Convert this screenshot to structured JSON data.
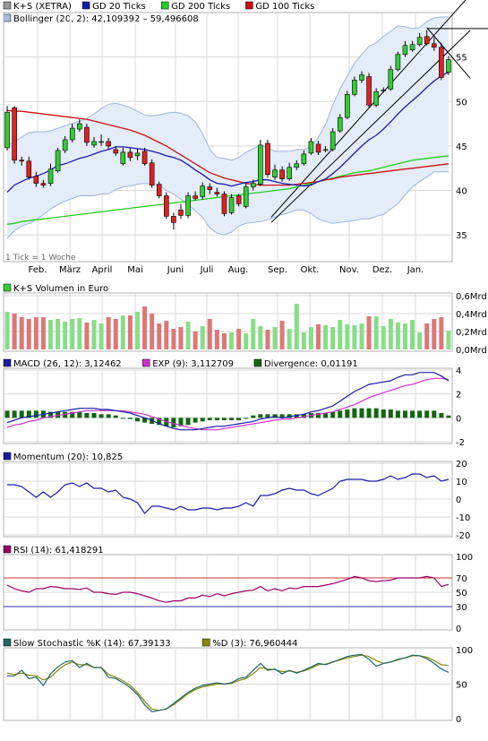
{
  "colors": {
    "up": "#33cc33",
    "down": "#dd2222",
    "ma20": "#1a1aa8",
    "ma200": "#22cc22",
    "ma100": "#cc1111",
    "bollinger_fill": "#e4ecf9",
    "bollinger_line": "#9bb4dd",
    "trend": "#000000",
    "vol_up": "#88dd88",
    "vol_down": "#dd7777",
    "macd": "#1a1aa8",
    "signal": "#cc33cc",
    "divergence": "#116611",
    "momentum": "#1a1aa8",
    "rsi": "#990066",
    "rsi_ob": "#cc3333",
    "rsi_os": "#3333aa",
    "stoch_k": "#226666",
    "stoch_d": "#888811",
    "grid": "#d8d8d8"
  },
  "months": [
    "Feb.",
    "März",
    "April",
    "Mai",
    "Juni",
    "Juli",
    "Aug.",
    "Sep.",
    "Okt.",
    "Nov.",
    "Dez.",
    "Jan."
  ],
  "price_panel": {
    "legend": [
      {
        "label": "K+S (XETRA)",
        "swatch": "#999999"
      },
      {
        "label": "GD 20 Ticks",
        "swatch": "#1a1aa8"
      },
      {
        "label": "GD 200 Ticks",
        "swatch": "#22cc22"
      },
      {
        "label": "GD 100 Ticks",
        "swatch": "#cc1111"
      }
    ],
    "bollinger_label": "Bollinger (20, 2): 42,109392 – 59,496608",
    "tick_note": "1 Tick = 1 Woche",
    "y_ticks": [
      "55",
      "50",
      "45",
      "40",
      "35"
    ]
  },
  "volume_panel": {
    "label": "K+S Volumen in Euro",
    "y_ticks": [
      "0,6Mrd",
      "0,4Mrd",
      "0,2Mrd",
      "0,0Mrd"
    ]
  },
  "macd_panel": {
    "legend": [
      {
        "label": "MACD (26, 12): 3,12462",
        "swatch": "#1a1aa8"
      },
      {
        "label": "EXP (9): 3,112709",
        "swatch": "#cc33cc"
      },
      {
        "label": "Divergence: 0,01191",
        "swatch": "#116611"
      }
    ],
    "y_ticks": [
      "4",
      "2",
      "0",
      "-2"
    ]
  },
  "momentum_panel": {
    "label": "Momentum (20): 10,825",
    "y_ticks": [
      "20",
      "10",
      "0",
      "-10",
      "-20"
    ]
  },
  "rsi_panel": {
    "label": "RSI (14): 61,418291",
    "y_ticks": [
      "100",
      "70",
      "50",
      "30",
      "0"
    ]
  },
  "stoch_panel": {
    "legend": [
      {
        "label": "Slow Stochastic %K (14): 67,39133",
        "swatch": "#226666"
      },
      {
        "label": "%D (3): 76,960444",
        "swatch": "#888811"
      }
    ],
    "y_ticks": [
      "100",
      "50",
      "0"
    ]
  },
  "chart_data": {
    "type": "candlestick",
    "series_candles": {
      "open": [
        44.8,
        49.3,
        43.4,
        43.3,
        41.6,
        40.8,
        40.8,
        42.2,
        44.5,
        45.7,
        46.9,
        47.1,
        45.1,
        45.5,
        45.5,
        44.6,
        43.0,
        44.3,
        43.9,
        44.4,
        43.1,
        40.7,
        39.4,
        37.1,
        37.8,
        37.2,
        39.4,
        39.3,
        40.4,
        39.8,
        39.6,
        37.5,
        39.4,
        38.2,
        40.4,
        40.7,
        45.3,
        41.5,
        42.3,
        41.3,
        42.6,
        43.0,
        44.2,
        45.2,
        44.6,
        44.6,
        46.7,
        48.2,
        50.8,
        52.4,
        52.8,
        49.6,
        51.2,
        51.4,
        53.6,
        55.3,
        55.8,
        56.4,
        57.3,
        56.5,
        56.1,
        53.3
      ],
      "close": [
        48.8,
        43.4,
        43.3,
        41.5,
        40.8,
        40.6,
        42.4,
        44.5,
        45.7,
        47.0,
        47.5,
        45.4,
        45.5,
        45.5,
        45.0,
        44.2,
        44.3,
        43.7,
        44.2,
        43.0,
        40.6,
        39.4,
        37.1,
        36.4,
        37.2,
        39.4,
        39.1,
        40.5,
        40.1,
        39.6,
        37.4,
        39.2,
        38.5,
        40.4,
        40.8,
        45.1,
        41.8,
        42.3,
        41.3,
        42.6,
        43.0,
        44.1,
        45.5,
        44.3,
        44.6,
        46.6,
        48.2,
        50.8,
        52.4,
        53.0,
        49.6,
        51.1,
        51.3,
        53.6,
        55.3,
        56.3,
        56.4,
        57.2,
        56.5,
        56.1,
        52.7,
        54.7
      ],
      "high": [
        49.5,
        49.5,
        43.8,
        43.8,
        42.1,
        41.2,
        43.0,
        44.8,
        46.1,
        47.5,
        48.0,
        47.5,
        46.0,
        46.3,
        45.9,
        45.0,
        44.8,
        44.8,
        44.7,
        44.8,
        43.5,
        41.0,
        39.8,
        37.5,
        38.5,
        39.8,
        39.9,
        40.9,
        40.8,
        40.3,
        39.9,
        39.6,
        39.6,
        40.8,
        41.2,
        45.7,
        45.7,
        42.9,
        42.7,
        43.1,
        43.4,
        44.5,
        45.9,
        45.6,
        45.0,
        47.0,
        48.6,
        51.2,
        52.8,
        53.4,
        53.2,
        51.5,
        51.6,
        54.0,
        55.6,
        56.8,
        56.8,
        57.7,
        58.0,
        57.2,
        56.6,
        55.1
      ],
      "low": [
        44.5,
        43.0,
        42.8,
        41.2,
        40.4,
        40.3,
        40.5,
        42.0,
        44.2,
        45.4,
        46.6,
        45.0,
        44.8,
        45.0,
        44.6,
        43.9,
        42.8,
        43.3,
        43.4,
        42.8,
        40.3,
        39.1,
        36.8,
        35.6,
        36.8,
        36.9,
        38.9,
        39.0,
        39.6,
        39.3,
        37.1,
        37.3,
        38.2,
        38.0,
        40.0,
        40.5,
        41.5,
        41.2,
        41.0,
        41.1,
        42.3,
        42.8,
        44.0,
        44.0,
        44.3,
        44.4,
        46.5,
        48.0,
        50.6,
        52.1,
        49.3,
        49.4,
        51.0,
        51.2,
        53.4,
        55.0,
        55.6,
        56.2,
        56.3,
        55.7,
        52.4,
        53.0
      ]
    },
    "ma20": [
      39.8,
      40.6,
      41.0,
      41.4,
      41.6,
      41.9,
      42.3,
      42.8,
      43.0,
      43.3,
      43.6,
      43.8,
      44.1,
      44.4,
      44.6,
      44.9,
      44.9,
      44.8,
      44.7,
      44.6,
      44.4,
      44.2,
      43.9,
      43.7,
      43.4,
      42.9,
      42.3,
      41.8,
      41.2,
      40.8,
      40.7,
      40.5,
      40.7,
      40.9,
      41.0,
      41.2,
      41.2,
      41.0,
      40.8,
      40.7,
      40.6,
      40.5,
      40.6,
      41.0,
      41.3,
      41.9,
      42.6,
      43.4,
      44.2,
      45.0,
      45.7,
      46.2,
      46.9,
      47.7,
      48.6,
      49.4,
      50.1,
      50.8,
      51.6,
      52.3,
      52.9,
      53.3
    ],
    "ma100": [
      49.0,
      48.9,
      48.9,
      48.8,
      48.7,
      48.6,
      48.5,
      48.4,
      48.3,
      48.2,
      48.1,
      48.0,
      47.8,
      47.6,
      47.4,
      47.2,
      47.0,
      46.8,
      46.5,
      46.2,
      45.8,
      45.4,
      45.0,
      44.5,
      44.0,
      43.5,
      43.0,
      42.5,
      42.0,
      41.7,
      41.4,
      41.2,
      41.0,
      40.8,
      40.7,
      40.6,
      40.6,
      40.6,
      40.6,
      40.6,
      40.7,
      40.8,
      40.9,
      41.0,
      41.2,
      41.3,
      41.5,
      41.6,
      41.7,
      41.8,
      41.9,
      42.0,
      42.1,
      42.2,
      42.3,
      42.4,
      42.5,
      42.6,
      42.7,
      42.8,
      42.9,
      43.0
    ],
    "ma200": [
      36.2,
      36.3,
      36.5,
      36.6,
      36.7,
      36.8,
      36.9,
      37.0,
      37.1,
      37.2,
      37.3,
      37.4,
      37.5,
      37.6,
      37.7,
      37.8,
      37.9,
      38.0,
      38.1,
      38.2,
      38.3,
      38.4,
      38.5,
      38.6,
      38.7,
      38.8,
      38.9,
      39.0,
      39.1,
      39.2,
      39.3,
      39.4,
      39.5,
      39.6,
      39.7,
      39.8,
      39.9,
      40.0,
      40.1,
      40.2,
      40.4,
      40.6,
      40.8,
      41.0,
      41.2,
      41.4,
      41.6,
      41.8,
      42.0,
      42.1,
      42.2,
      42.4,
      42.6,
      42.8,
      43.0,
      43.2,
      43.4,
      43.5,
      43.6,
      43.7,
      43.8,
      43.9
    ],
    "boll_upper": [
      45.0,
      45.5,
      46.0,
      46.5,
      46.6,
      46.6,
      46.7,
      47.0,
      47.3,
      47.5,
      47.8,
      48.1,
      48.6,
      49.2,
      49.7,
      49.8,
      49.6,
      49.3,
      48.9,
      48.5,
      48.4,
      48.5,
      48.7,
      48.8,
      48.7,
      48.4,
      47.7,
      46.4,
      44.6,
      43.7,
      43.6,
      43.4,
      43.7,
      44.3,
      44.7,
      45.1,
      44.8,
      44.4,
      44.4,
      44.4,
      44.6,
      44.6,
      44.9,
      46.0,
      47.4,
      49.6,
      51.4,
      52.9,
      54.3,
      55.3,
      56.2,
      56.6,
      57.3,
      57.9,
      58.5,
      58.4,
      58.2,
      58.3,
      59.0,
      59.4,
      59.5,
      59.5
    ],
    "boll_lower": [
      34.6,
      35.5,
      36.0,
      36.3,
      36.7,
      37.3,
      37.9,
      38.4,
      38.8,
      39.1,
      39.4,
      39.4,
      39.4,
      39.6,
      39.6,
      40.1,
      40.4,
      40.5,
      40.7,
      40.8,
      40.7,
      40.6,
      40.0,
      39.6,
      39.0,
      38.4,
      37.7,
      37.0,
      35.8,
      35.2,
      35.0,
      35.3,
      36.0,
      36.3,
      36.4,
      36.5,
      36.7,
      37.0,
      37.3,
      37.5,
      37.8,
      37.8,
      37.4,
      36.8,
      36.5,
      36.3,
      36.4,
      36.5,
      36.6,
      36.8,
      36.8,
      37.1,
      37.3,
      37.9,
      38.5,
      39.5,
      40.4,
      41.0,
      41.5,
      42.1,
      42.1,
      42.1
    ],
    "volume_bn": [
      0.42,
      0.4,
      0.36,
      0.34,
      0.36,
      0.36,
      0.33,
      0.34,
      0.31,
      0.34,
      0.35,
      0.3,
      0.33,
      0.29,
      0.36,
      0.34,
      0.38,
      0.38,
      0.42,
      0.48,
      0.4,
      0.29,
      0.32,
      0.23,
      0.25,
      0.31,
      0.2,
      0.26,
      0.34,
      0.22,
      0.18,
      0.19,
      0.23,
      0.18,
      0.34,
      0.26,
      0.22,
      0.25,
      0.32,
      0.23,
      0.51,
      0.19,
      0.25,
      0.28,
      0.27,
      0.25,
      0.33,
      0.28,
      0.27,
      0.29,
      0.37,
      0.37,
      0.26,
      0.34,
      0.3,
      0.29,
      0.33,
      0.19,
      0.29,
      0.34,
      0.36,
      0.21
    ],
    "macd": [
      -0.4,
      -0.2,
      0.0,
      0.1,
      0.2,
      0.3,
      0.4,
      0.5,
      0.6,
      0.7,
      0.8,
      0.8,
      0.8,
      0.7,
      0.7,
      0.6,
      0.5,
      0.4,
      0.2,
      0.0,
      -0.2,
      -0.5,
      -0.7,
      -0.9,
      -1.0,
      -1.0,
      -1.0,
      -0.9,
      -0.8,
      -0.7,
      -0.7,
      -0.6,
      -0.5,
      -0.4,
      -0.3,
      -0.1,
      0.0,
      0.1,
      0.0,
      0.1,
      0.2,
      0.3,
      0.5,
      0.6,
      0.8,
      1.0,
      1.4,
      1.8,
      2.2,
      2.5,
      2.8,
      2.9,
      3.0,
      3.1,
      3.4,
      3.6,
      3.6,
      3.8,
      3.8,
      3.8,
      3.5,
      3.1
    ],
    "macd_signal": [
      -0.8,
      -0.6,
      -0.5,
      -0.3,
      -0.2,
      0.0,
      0.1,
      0.2,
      0.3,
      0.4,
      0.5,
      0.6,
      0.6,
      0.6,
      0.6,
      0.6,
      0.6,
      0.5,
      0.4,
      0.3,
      0.1,
      -0.1,
      -0.3,
      -0.5,
      -0.6,
      -0.8,
      -0.9,
      -1.0,
      -1.0,
      -1.0,
      -0.9,
      -0.8,
      -0.7,
      -0.6,
      -0.5,
      -0.4,
      -0.3,
      -0.2,
      -0.1,
      -0.1,
      0.0,
      0.1,
      0.2,
      0.3,
      0.4,
      0.5,
      0.7,
      0.9,
      1.1,
      1.4,
      1.7,
      1.9,
      2.1,
      2.3,
      2.5,
      2.7,
      2.8,
      3.0,
      3.2,
      3.3,
      3.3,
      3.2
    ],
    "macd_divergence": [
      0.6,
      0.6,
      0.6,
      0.6,
      0.6,
      0.6,
      0.5,
      0.5,
      0.5,
      0.5,
      0.5,
      0.4,
      0.4,
      0.3,
      0.3,
      0.2,
      0.0,
      -0.1,
      -0.3,
      -0.4,
      -0.5,
      -0.6,
      -0.7,
      -0.8,
      -0.7,
      -0.6,
      -0.4,
      -0.3,
      -0.2,
      -0.2,
      -0.2,
      -0.2,
      -0.2,
      0.0,
      0.2,
      0.3,
      0.3,
      0.3,
      0.3,
      0.3,
      0.3,
      0.3,
      0.4,
      0.4,
      0.4,
      0.5,
      0.6,
      0.7,
      0.8,
      0.8,
      0.8,
      0.8,
      0.7,
      0.7,
      0.6,
      0.6,
      0.6,
      0.6,
      0.6,
      0.6,
      0.4,
      0.2
    ],
    "momentum": [
      8,
      8,
      7,
      4,
      1,
      4,
      1,
      4,
      8,
      9,
      7,
      9,
      6,
      6,
      4,
      5,
      1,
      0,
      -2,
      -8,
      -4,
      -4,
      -5,
      -6,
      -4,
      -6,
      -6,
      -5,
      -5,
      -6,
      -5,
      -5,
      -4,
      -2,
      -4,
      2,
      2,
      3,
      5,
      6,
      5,
      5,
      3,
      2,
      4,
      6,
      10,
      11,
      11,
      11,
      10,
      10,
      11,
      13,
      11,
      12,
      14,
      14,
      12,
      13,
      10,
      11
    ],
    "rsi": [
      60,
      55,
      52,
      50,
      55,
      55,
      58,
      57,
      55,
      55,
      54,
      56,
      50,
      50,
      48,
      47,
      50,
      50,
      48,
      45,
      42,
      38,
      36,
      38,
      38,
      42,
      42,
      46,
      44,
      48,
      45,
      48,
      50,
      52,
      53,
      58,
      52,
      55,
      52,
      56,
      55,
      58,
      58,
      58,
      60,
      62,
      65,
      68,
      72,
      70,
      66,
      65,
      66,
      67,
      70,
      70,
      70,
      70,
      72,
      70,
      58,
      61
    ],
    "stoch_k": [
      62,
      62,
      70,
      58,
      60,
      48,
      65,
      75,
      82,
      84,
      74,
      80,
      74,
      74,
      60,
      58,
      52,
      45,
      35,
      20,
      10,
      12,
      14,
      22,
      30,
      38,
      44,
      48,
      50,
      52,
      50,
      52,
      58,
      60,
      70,
      80,
      70,
      72,
      65,
      70,
      66,
      70,
      75,
      80,
      78,
      82,
      86,
      90,
      92,
      93,
      86,
      76,
      80,
      82,
      86,
      88,
      92,
      91,
      87,
      80,
      72,
      67
    ],
    "stoch_d": [
      66,
      64,
      66,
      63,
      62,
      56,
      60,
      70,
      78,
      82,
      78,
      78,
      74,
      74,
      64,
      60,
      55,
      48,
      38,
      25,
      14,
      12,
      14,
      20,
      28,
      36,
      42,
      46,
      48,
      50,
      50,
      51,
      55,
      58,
      65,
      74,
      72,
      71,
      68,
      69,
      67,
      69,
      73,
      78,
      79,
      82,
      85,
      88,
      90,
      92,
      90,
      84,
      80,
      82,
      85,
      88,
      91,
      91,
      89,
      84,
      78,
      77
    ]
  }
}
